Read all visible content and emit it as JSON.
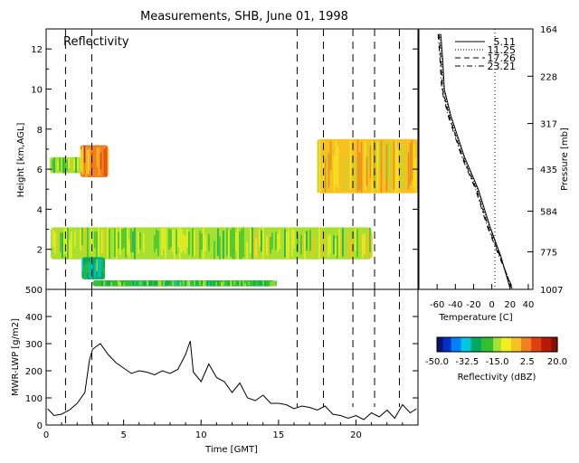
{
  "title": "Measurements, SHB, June 01, 1998",
  "chart_data": [
    {
      "type": "heatmap",
      "panel_label": "Reflectivity",
      "ylabel": "Height [km,AGL]",
      "xlim": [
        0,
        24
      ],
      "ylim": [
        0,
        13
      ],
      "yticks": [
        "2",
        "4",
        "6",
        "8",
        "10",
        "12"
      ],
      "dashed_times": [
        1.25,
        2.95,
        16.2,
        17.9,
        19.8,
        21.2,
        22.8
      ],
      "echo_regions": [
        {
          "t": [
            0.25,
            3.0
          ],
          "z": [
            5.8,
            6.6
          ],
          "dbz": -15
        },
        {
          "t": [
            2.2,
            4.0
          ],
          "z": [
            5.6,
            7.2
          ],
          "dbz": 2
        },
        {
          "t": [
            0.3,
            21.0
          ],
          "z": [
            1.5,
            3.1
          ],
          "dbz": -15
        },
        {
          "t": [
            2.3,
            3.8
          ],
          "z": [
            0.5,
            1.6
          ],
          "dbz": -25
        },
        {
          "t": [
            3.0,
            14.8
          ],
          "z": [
            0.15,
            0.45
          ],
          "dbz": -20
        },
        {
          "t": [
            17.5,
            24.0
          ],
          "z": [
            4.8,
            7.5
          ],
          "dbz": -5
        }
      ]
    },
    {
      "type": "line",
      "ylabel": "MWR-LWP [g/m2]",
      "xlabel": "Time [GMT]",
      "xlim": [
        0,
        24
      ],
      "ylim": [
        0,
        500
      ],
      "xticks": [
        "0",
        "5",
        "10",
        "15",
        "20"
      ],
      "yticks": [
        "0",
        "100",
        "200",
        "300",
        "400",
        "500"
      ],
      "x": [
        0.1,
        0.5,
        1.0,
        1.5,
        2.0,
        2.5,
        2.8,
        3.0,
        3.5,
        4.0,
        4.5,
        5.0,
        5.5,
        6.0,
        6.5,
        7.0,
        7.5,
        8.0,
        8.5,
        9.0,
        9.3,
        9.5,
        10.0,
        10.5,
        11.0,
        11.5,
        12.0,
        12.5,
        13.0,
        13.5,
        14.0,
        14.5,
        15.0,
        15.5,
        16.0,
        16.5,
        17.0,
        17.5,
        18.0,
        18.5,
        19.0,
        19.5,
        20.0,
        20.5,
        21.0,
        21.5,
        22.0,
        22.5,
        23.0,
        23.5,
        23.9
      ],
      "y": [
        60,
        35,
        40,
        55,
        80,
        120,
        240,
        280,
        300,
        260,
        230,
        210,
        190,
        200,
        195,
        185,
        200,
        190,
        205,
        260,
        310,
        195,
        160,
        225,
        175,
        160,
        120,
        155,
        100,
        90,
        110,
        80,
        80,
        75,
        60,
        70,
        65,
        55,
        70,
        40,
        35,
        25,
        35,
        20,
        45,
        30,
        55,
        25,
        75,
        45,
        60
      ]
    },
    {
      "type": "line",
      "xlabel": "Temperature [C]",
      "ylabel": "Pressure [mb]",
      "xlim": [
        -80,
        45
      ],
      "xticks": [
        "-60",
        "-40",
        "-20",
        "0",
        "20",
        "40"
      ],
      "yticks": [
        "164",
        "228",
        "317",
        "435",
        "584",
        "775",
        "1007"
      ],
      "legend_entries": [
        "5.11",
        "11.25",
        "17.26",
        "23.21"
      ],
      "series": [
        {
          "name": "5.11",
          "temperature": [
            -56,
            -54,
            -52,
            -45,
            -30,
            -15,
            -2,
            10,
            20
          ],
          "pressure": [
            170,
            200,
            250,
            300,
            400,
            500,
            650,
            800,
            1000
          ]
        },
        {
          "name": "11.25",
          "temperature": [
            -57,
            -55,
            -53,
            -46,
            -31,
            -16,
            -3,
            9,
            21
          ],
          "pressure": [
            170,
            200,
            250,
            300,
            400,
            500,
            650,
            800,
            1000
          ]
        },
        {
          "name": "17.26",
          "temperature": [
            -58,
            -56,
            -54,
            -47,
            -32,
            -17,
            -4,
            9,
            22
          ],
          "pressure": [
            170,
            200,
            250,
            300,
            400,
            500,
            650,
            800,
            1000
          ]
        },
        {
          "name": "23.21",
          "temperature": [
            -59,
            -57,
            -55,
            -48,
            -33,
            -18,
            -5,
            8,
            23
          ],
          "pressure": [
            170,
            200,
            250,
            300,
            400,
            500,
            650,
            800,
            1000
          ]
        }
      ]
    }
  ],
  "colorbar": {
    "label": "Reflectivity (dBZ)",
    "tick_labels": [
      "-50.0",
      "-32.5",
      "-15.0",
      "2.5",
      "20.0"
    ],
    "range": [
      -50,
      20
    ],
    "colors": [
      "#0a1470",
      "#0030c8",
      "#0080ff",
      "#00c8e0",
      "#00a860",
      "#30c030",
      "#a8e030",
      "#f0f020",
      "#f8c020",
      "#f08020",
      "#e04010",
      "#b81808",
      "#801008"
    ]
  }
}
